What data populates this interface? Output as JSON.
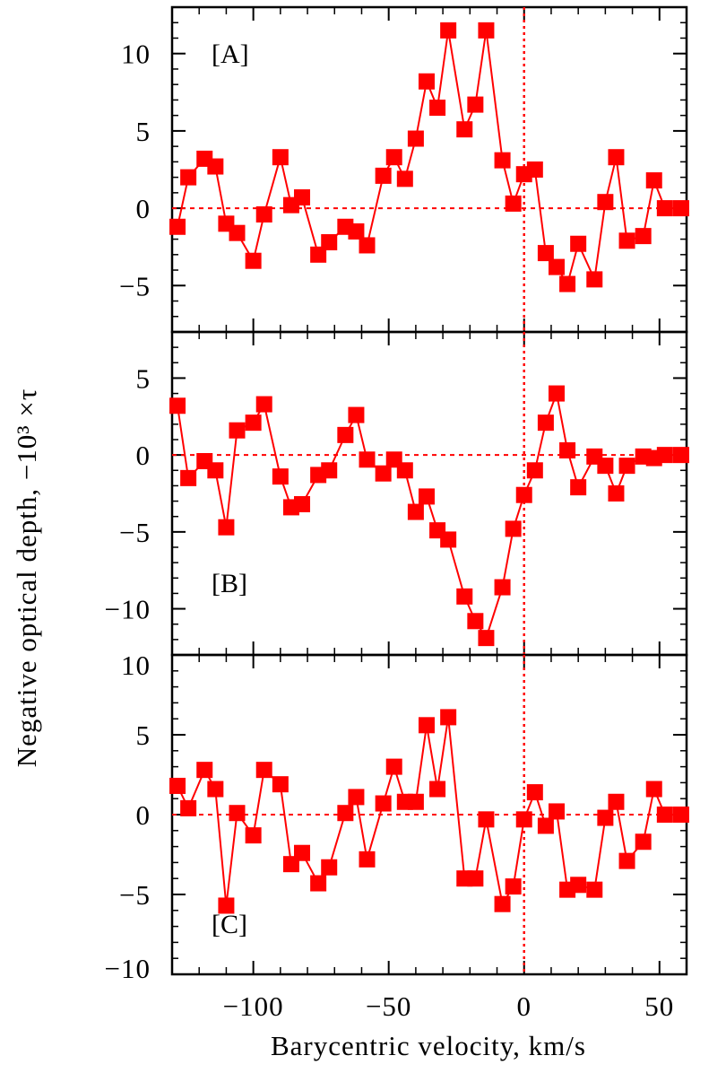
{
  "colors": {
    "series": "#ff0000",
    "axes": "#000000",
    "background": "#ffffff"
  },
  "chart_data": {
    "type": "line",
    "xlabel": "Barycentric velocity, km/s",
    "ylabel": "Negative optical depth, −10³ ×τ",
    "xlim": [
      -130,
      60
    ],
    "x_ticks": [
      {
        "value": -100,
        "label": "−100"
      },
      {
        "value": -50,
        "label": "−50"
      },
      {
        "value": 0,
        "label": "0"
      },
      {
        "value": 50,
        "label": "50"
      }
    ],
    "reference_lines": {
      "x": 0,
      "y": 0,
      "style": "dotted"
    },
    "marker": "square",
    "panels": [
      {
        "label": "[A]",
        "ylim": [
          -8,
          13
        ],
        "y_ticks": [
          {
            "value": 10,
            "label": "10"
          },
          {
            "value": 5,
            "label": "5"
          },
          {
            "value": 0,
            "label": "0"
          },
          {
            "value": -5,
            "label": "−5"
          }
        ],
        "x": [
          -128,
          -124,
          -118,
          -114,
          -110,
          -106,
          -100,
          -96,
          -90,
          -86,
          -82,
          -76,
          -72,
          -66,
          -62,
          -58,
          -52,
          -48,
          -44,
          -40,
          -36,
          -32,
          -28,
          -22,
          -18,
          -14,
          -8,
          -4,
          0,
          4,
          8,
          12,
          16,
          20,
          26,
          30,
          34,
          38,
          44,
          48,
          52,
          58
        ],
        "y": [
          -1.2,
          2.0,
          3.2,
          2.7,
          -1.0,
          -1.6,
          -3.4,
          -0.4,
          3.3,
          0.2,
          0.7,
          -3.0,
          -2.2,
          -1.2,
          -1.5,
          -2.4,
          2.1,
          3.3,
          1.9,
          4.5,
          8.2,
          6.5,
          11.5,
          5.1,
          6.7,
          11.5,
          3.1,
          0.3,
          2.2,
          2.5,
          -2.9,
          -3.8,
          -4.9,
          -2.3,
          -4.6,
          0.4,
          3.3,
          -2.1,
          -1.8,
          1.8,
          0,
          0
        ]
      },
      {
        "label": "[B]",
        "ylim": [
          -13,
          8
        ],
        "y_ticks": [
          {
            "value": 5,
            "label": "5"
          },
          {
            "value": 0,
            "label": "0"
          },
          {
            "value": -5,
            "label": "−5"
          },
          {
            "value": -10,
            "label": "−10"
          }
        ],
        "x": [
          -128,
          -124,
          -118,
          -114,
          -110,
          -106,
          -100,
          -96,
          -90,
          -86,
          -82,
          -76,
          -72,
          -66,
          -62,
          -58,
          -52,
          -48,
          -44,
          -40,
          -36,
          -32,
          -28,
          -22,
          -18,
          -14,
          -8,
          -4,
          0,
          4,
          8,
          12,
          16,
          20,
          26,
          30,
          34,
          38,
          44,
          48,
          52,
          58
        ],
        "y": [
          3.2,
          -1.5,
          -0.4,
          -1.0,
          -4.7,
          1.6,
          2.1,
          3.3,
          -1.4,
          -3.4,
          -3.2,
          -1.3,
          -1.0,
          1.3,
          2.6,
          -0.3,
          -1.2,
          -0.3,
          -1.0,
          -3.7,
          -2.7,
          -4.9,
          -5.5,
          -9.2,
          -10.8,
          -11.9,
          -8.6,
          -4.8,
          -2.6,
          -1.0,
          2.1,
          4.0,
          0.3,
          -2.1,
          -0.1,
          -0.7,
          -2.5,
          -0.7,
          -0.1,
          -0.2,
          0,
          0
        ]
      },
      {
        "label": "[C]",
        "ylim": [
          -10,
          10
        ],
        "y_ticks": [
          {
            "value": 10,
            "label": "10"
          },
          {
            "value": 5,
            "label": "5"
          },
          {
            "value": 0,
            "label": "0"
          },
          {
            "value": -5,
            "label": "−5"
          },
          {
            "value": -10,
            "label": "−10"
          }
        ],
        "x": [
          -128,
          -124,
          -118,
          -114,
          -110,
          -106,
          -100,
          -96,
          -90,
          -86,
          -82,
          -76,
          -72,
          -66,
          -62,
          -58,
          -52,
          -48,
          -44,
          -40,
          -36,
          -32,
          -28,
          -22,
          -18,
          -14,
          -8,
          -4,
          0,
          4,
          8,
          12,
          16,
          20,
          26,
          30,
          34,
          38,
          44,
          48,
          52,
          58
        ],
        "y": [
          1.8,
          0.4,
          2.8,
          1.6,
          -5.7,
          0.1,
          -1.3,
          2.8,
          1.9,
          -3.1,
          -2.4,
          -4.3,
          -3.3,
          0.1,
          1.1,
          -2.8,
          0.7,
          3.0,
          0.8,
          0.8,
          5.6,
          1.6,
          6.1,
          -4.0,
          -4.0,
          -0.3,
          -5.6,
          -4.5,
          -0.3,
          1.4,
          -0.7,
          0.2,
          -4.7,
          -4.4,
          -4.7,
          -0.2,
          0.8,
          -2.9,
          -1.7,
          1.6,
          0,
          0
        ]
      }
    ]
  }
}
